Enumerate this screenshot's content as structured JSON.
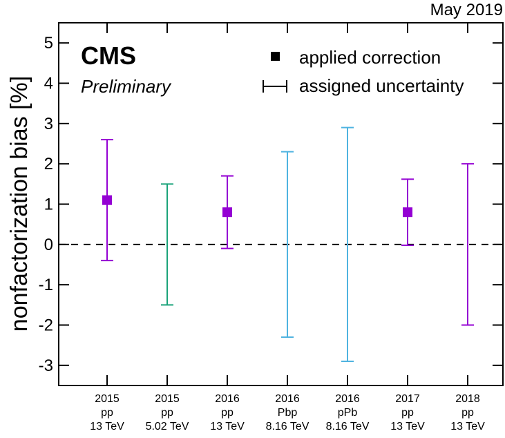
{
  "chart_data": {
    "type": "scatter",
    "title": "",
    "date_label": "May 2019",
    "experiment": "CMS",
    "status": "Preliminary",
    "xlabel": "",
    "ylabel": "nonfactorization bias [%]",
    "ylim": [
      -3.5,
      5.5
    ],
    "yticks": [
      "5",
      "4",
      "3",
      "2",
      "1",
      "0",
      "-1",
      "-2",
      "-3"
    ],
    "ytick_values": [
      5,
      4,
      3,
      2,
      1,
      0,
      -1,
      -2,
      -3
    ],
    "reference_line": 0,
    "legend": {
      "position": "top-right",
      "marker_label": "applied correction",
      "errorbar_label": "assigned uncertainty"
    },
    "categories": [
      {
        "line1": "2015",
        "line2": "pp",
        "line3": "13 TeV",
        "value": 1.1,
        "low": -0.4,
        "high": 2.6,
        "marker": true,
        "color": "#9400D3"
      },
      {
        "line1": "2015",
        "line2": "pp",
        "line3": "5.02 TeV",
        "value": null,
        "low": -1.5,
        "high": 1.5,
        "marker": false,
        "color": "#1AA37A"
      },
      {
        "line1": "2016",
        "line2": "pp",
        "line3": "13 TeV",
        "value": 0.8,
        "low": -0.1,
        "high": 1.7,
        "marker": true,
        "color": "#9400D3"
      },
      {
        "line1": "2016",
        "line2": "Pbp",
        "line3": "8.16 TeV",
        "value": null,
        "low": -2.3,
        "high": 2.3,
        "marker": false,
        "color": "#4FB3E0"
      },
      {
        "line1": "2016",
        "line2": "pPb",
        "line3": "8.16 TeV",
        "value": null,
        "low": -2.9,
        "high": 2.9,
        "marker": false,
        "color": "#4FB3E0"
      },
      {
        "line1": "2017",
        "line2": "pp",
        "line3": "13 TeV",
        "value": 0.8,
        "low": -0.02,
        "high": 1.62,
        "marker": true,
        "color": "#9400D3"
      },
      {
        "line1": "2018",
        "line2": "pp",
        "line3": "13 TeV",
        "value": null,
        "low": -2.0,
        "high": 2.0,
        "marker": false,
        "color": "#9400D3"
      }
    ]
  }
}
